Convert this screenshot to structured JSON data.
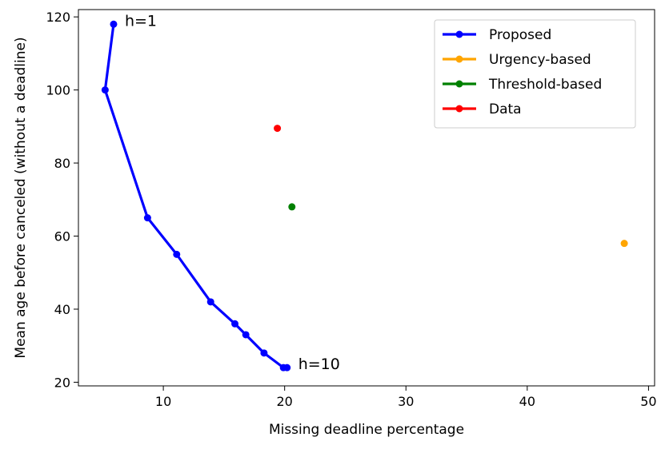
{
  "chart_data": {
    "type": "scatter",
    "xlabel": "Missing deadline percentage",
    "ylabel": "Mean age before canceled (without a deadline)",
    "xlim": [
      3,
      50.5
    ],
    "ylim": [
      19,
      122
    ],
    "xticks": [
      10,
      20,
      30,
      40,
      50
    ],
    "yticks": [
      20,
      40,
      60,
      80,
      100,
      120
    ],
    "grid": false,
    "legend_position": "top-right",
    "series": [
      {
        "name": "Proposed",
        "color": "#0000ff",
        "style": "line-markers",
        "x": [
          5.9,
          5.2,
          8.7,
          11.1,
          13.9,
          15.9,
          16.8,
          18.3,
          19.9,
          20.2
        ],
        "y": [
          118,
          100,
          65,
          55,
          42,
          36,
          33,
          28,
          24,
          24
        ]
      },
      {
        "name": "Urgency-based",
        "color": "#ffa500",
        "style": "markers",
        "x": [
          48.0
        ],
        "y": [
          58
        ]
      },
      {
        "name": "Threshold-based",
        "color": "#008000",
        "style": "markers",
        "x": [
          20.6
        ],
        "y": [
          68
        ]
      },
      {
        "name": "Data",
        "color": "#ff0000",
        "style": "markers",
        "x": [
          19.4
        ],
        "y": [
          89.5
        ]
      }
    ],
    "annotations": [
      {
        "text": "h=1",
        "x": 5.9,
        "y": 118
      },
      {
        "text": "h=10",
        "x": 20.2,
        "y": 24
      }
    ]
  }
}
